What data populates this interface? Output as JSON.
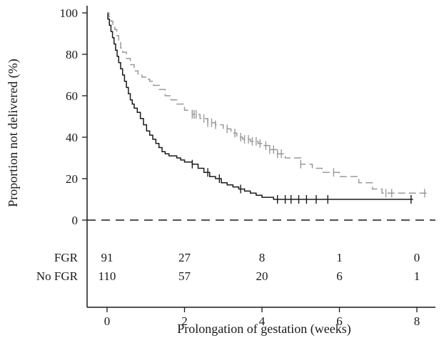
{
  "chart_data": {
    "type": "line",
    "subtype": "kaplan-meier",
    "title": "",
    "xlabel": "Prolongation of gestation (weeks)",
    "ylabel": "Proportion not delivered (%)",
    "xlim": [
      0,
      8.4
    ],
    "ylim": [
      -10,
      102
    ],
    "x_ticks": [
      0,
      2,
      4,
      6,
      8
    ],
    "y_ticks": [
      0,
      20,
      40,
      60,
      80,
      100
    ],
    "x_tick_labels": [
      "0",
      "2",
      "4",
      "6",
      "8"
    ],
    "y_tick_labels": [
      "0",
      "20",
      "40",
      "60",
      "80",
      "100"
    ],
    "legend": "none",
    "grid": false,
    "reference_line": {
      "y": 0,
      "style": "dashed",
      "color": "#1a1a1a"
    },
    "series": [
      {
        "color": "#1a1a1a",
        "line_style": "solid",
        "x": [
          0,
          0.02,
          0.06,
          0.1,
          0.14,
          0.18,
          0.22,
          0.26,
          0.3,
          0.35,
          0.4,
          0.45,
          0.5,
          0.55,
          0.6,
          0.65,
          0.7,
          0.78,
          0.86,
          0.94,
          1.02,
          1.1,
          1.18,
          1.26,
          1.34,
          1.42,
          1.5,
          1.6,
          1.7,
          1.8,
          1.9,
          2.0,
          2.1,
          2.2,
          2.35,
          2.5,
          2.65,
          2.8,
          2.95,
          3.1,
          3.25,
          3.4,
          3.55,
          3.7,
          3.85,
          4.0,
          4.3,
          7.9
        ],
        "y": [
          100,
          97,
          94,
          91,
          88,
          85,
          82,
          79,
          76,
          73,
          70,
          67,
          64,
          61,
          58,
          56,
          54,
          52,
          49,
          46,
          43,
          41,
          39,
          37,
          35,
          33,
          32,
          31,
          31,
          30,
          29,
          28,
          28,
          27,
          25,
          23,
          21,
          20,
          18,
          17,
          16,
          15,
          14,
          13,
          12,
          11,
          10,
          10
        ],
        "censored_x": [
          2.2,
          2.6,
          2.9,
          3.45,
          4.4,
          4.6,
          4.75,
          4.95,
          5.15,
          5.4,
          5.7,
          7.85
        ]
      },
      {
        "color": "#9a9a9a",
        "line_style": "dashed",
        "x": [
          0,
          0.05,
          0.1,
          0.15,
          0.2,
          0.25,
          0.3,
          0.35,
          0.4,
          0.5,
          0.6,
          0.7,
          0.8,
          0.9,
          1.0,
          1.1,
          1.2,
          1.35,
          1.5,
          1.65,
          1.8,
          2.0,
          2.2,
          2.4,
          2.6,
          2.8,
          3.0,
          3.2,
          3.35,
          3.5,
          3.7,
          3.9,
          4.05,
          4.2,
          4.4,
          4.6,
          5.0,
          5.3,
          5.55,
          5.8,
          6.0,
          6.5,
          6.85,
          7.1,
          8.3
        ],
        "y": [
          100,
          98,
          96,
          94,
          92,
          89,
          86,
          83,
          81,
          78,
          75,
          72,
          70,
          69,
          68,
          67,
          65,
          63,
          60,
          58,
          56,
          53,
          51,
          49,
          47,
          46,
          44,
          42,
          40,
          39,
          38,
          37,
          36,
          34,
          32,
          30,
          27,
          25,
          23,
          23,
          21,
          18,
          15,
          13,
          13
        ],
        "censored_x": [
          2.2,
          2.25,
          2.3,
          2.5,
          2.6,
          2.7,
          2.8,
          3.1,
          3.3,
          3.45,
          3.55,
          3.65,
          3.75,
          3.85,
          3.95,
          4.1,
          4.2,
          4.3,
          4.4,
          4.5,
          5.0,
          5.85,
          7.2,
          7.35,
          8.2
        ]
      }
    ],
    "risk_table": {
      "rows": [
        {
          "label": "FGR",
          "values": [
            "91",
            "27",
            "8",
            "1",
            "0"
          ]
        },
        {
          "label": "No FGR",
          "values": [
            "110",
            "57",
            "20",
            "6",
            "1"
          ]
        }
      ]
    }
  }
}
